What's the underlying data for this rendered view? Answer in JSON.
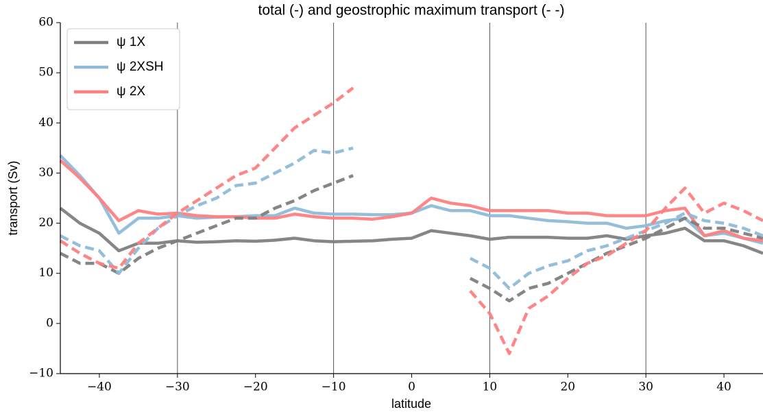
{
  "chart_data": {
    "type": "line",
    "title": "total (-) and geostrophic maximum transport (- -)",
    "xlabel": "latitude",
    "ylabel": "transport (Sv)",
    "x": [
      -45,
      -42.5,
      -40,
      -37.5,
      -35,
      -32.5,
      -30,
      -27.5,
      -25,
      -22.5,
      -20,
      -17.5,
      -15,
      -12.5,
      -10,
      -7.5,
      -5,
      -2.5,
      0,
      2.5,
      5,
      7.5,
      10,
      12.5,
      15,
      17.5,
      20,
      22.5,
      25,
      27.5,
      30,
      32.5,
      35,
      37.5,
      40,
      42.5,
      45
    ],
    "series": [
      {
        "name": "ψ 1X",
        "color": "#7f7f7f",
        "style": "solid",
        "values": [
          23,
          20,
          18,
          14.5,
          16,
          16,
          16.5,
          16.2,
          16.3,
          16.5,
          16.4,
          16.6,
          17,
          16.5,
          16.3,
          16.4,
          16.5,
          16.8,
          17,
          18.5,
          18,
          17.5,
          16.8,
          17.2,
          17.2,
          17.2,
          17,
          17,
          17.5,
          16.8,
          17.5,
          18,
          19,
          16.5,
          16.5,
          15.5,
          14
        ]
      },
      {
        "name": "ψ 2XSH",
        "color": "#8fbbd9",
        "style": "solid",
        "values": [
          33.5,
          29.5,
          25,
          18,
          21,
          21,
          21.5,
          21,
          21.2,
          21.3,
          21.5,
          21.5,
          23,
          22,
          21.8,
          21.8,
          21.7,
          21.7,
          22,
          23.5,
          22.5,
          22.5,
          21.5,
          21.5,
          21,
          20.5,
          20.3,
          20,
          20,
          19,
          19.5,
          20.5,
          21,
          17.5,
          18,
          17,
          16
        ]
      },
      {
        "name": "ψ 2X",
        "color": "#ff7f7f",
        "style": "solid",
        "values": [
          32.5,
          29,
          25,
          20.5,
          22.5,
          21.8,
          22,
          21.5,
          21.3,
          21.3,
          21,
          21,
          21.8,
          21.3,
          21,
          21,
          20.8,
          21.3,
          22,
          25,
          24,
          23.5,
          22.5,
          22.5,
          22.5,
          22.5,
          22,
          22,
          21.5,
          21.5,
          21.5,
          22.5,
          23,
          17.5,
          18.5,
          17,
          16.5
        ]
      },
      {
        "color": "#7f7f7f",
        "style": "dashed",
        "values": [
          14,
          12,
          12,
          10,
          13,
          15,
          16.5,
          18,
          19.5,
          21,
          21,
          23,
          24.5,
          26.5,
          28,
          29.5,
          null,
          null,
          null,
          null,
          null,
          9,
          7,
          4.5,
          7,
          8,
          10,
          12,
          14,
          15.5,
          17,
          19,
          21,
          19,
          19,
          18,
          17
        ]
      },
      {
        "color": "#8fbbd9",
        "style": "dashed",
        "values": [
          17.5,
          15.5,
          14.5,
          10,
          15,
          19,
          21.5,
          23.5,
          25,
          27.5,
          28,
          30,
          32,
          34.5,
          34,
          35,
          null,
          null,
          null,
          null,
          null,
          13,
          11,
          7,
          10,
          11.5,
          12.5,
          14.5,
          15.5,
          17,
          18.5,
          20,
          22,
          20.5,
          20,
          19,
          17.5
        ]
      },
      {
        "color": "#ff7f7f",
        "style": "dashed",
        "values": [
          16.5,
          14,
          12,
          11,
          16,
          19,
          22,
          24.5,
          27,
          29.5,
          31,
          35,
          39,
          41.5,
          44,
          47,
          null,
          null,
          null,
          null,
          null,
          6.5,
          2,
          -6,
          3,
          5.5,
          9,
          12,
          13.5,
          16,
          18.5,
          23,
          27,
          22,
          24,
          22.5,
          20.5
        ]
      }
    ],
    "xlim": [
      -45,
      45
    ],
    "xticks": [
      {
        "value": -40,
        "label": "−40"
      },
      {
        "value": -30,
        "label": "−30"
      },
      {
        "value": -20,
        "label": "−20"
      },
      {
        "value": -10,
        "label": "−10"
      },
      0,
      10,
      20,
      30,
      40
    ],
    "ylim": [
      -10,
      60
    ],
    "yticks": [
      {
        "value": -10,
        "label": "−10"
      },
      0,
      10,
      20,
      30,
      40,
      50,
      60
    ],
    "vlines": [
      -30,
      -10,
      10,
      30
    ],
    "legend": "upper left"
  }
}
